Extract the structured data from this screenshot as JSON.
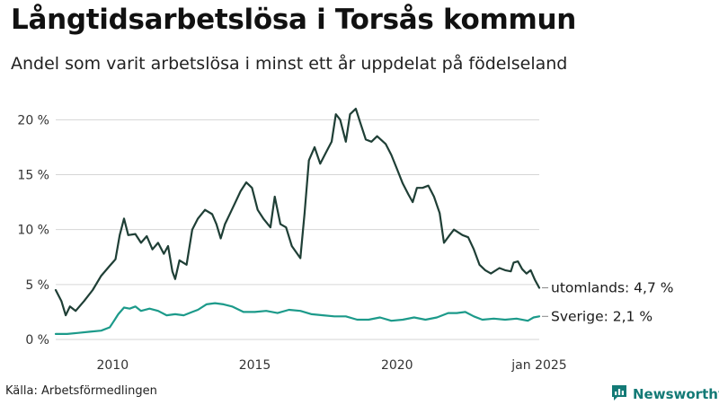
{
  "header": {
    "title": "Långtidsarbetslösa i Torsås kommun",
    "subtitle": "Andel som varit arbetslösa i minst ett år uppdelat på födelseland"
  },
  "footer": {
    "source": "Källa: Arbetsförmedlingen",
    "brand": "Newsworthy"
  },
  "colors": {
    "utomlands": "#1f3f36",
    "sverige": "#1c9a8a",
    "grid": "#d6d6d6",
    "brand": "#137a76"
  },
  "icons": {
    "brand_logo": "bar-chart-speech-bubble-icon"
  },
  "chart_data": {
    "type": "line",
    "title": "Långtidsarbetslösa i Torsås kommun",
    "subtitle": "Andel som varit arbetslösa i minst ett år uppdelat på födelseland",
    "xlabel": "",
    "ylabel": "",
    "x_range": [
      2008.0,
      2025.0
    ],
    "ylim": [
      0,
      21.5
    ],
    "y_ticks": [
      0,
      5,
      10,
      15,
      20
    ],
    "y_tick_labels": [
      "0 %",
      "5 %",
      "10 %",
      "15 %",
      "20 %"
    ],
    "x_ticks": [
      2010,
      2015,
      2020,
      2025
    ],
    "x_tick_labels": [
      "2010",
      "2015",
      "2020",
      "jan 2025"
    ],
    "grid": "horizontal",
    "legend": "end-of-line labels",
    "series": [
      {
        "name": "utomlands",
        "end_label": "utomlands: 4,7 %",
        "points": [
          [
            2008.0,
            4.5
          ],
          [
            2008.2,
            3.5
          ],
          [
            2008.35,
            2.2
          ],
          [
            2008.5,
            3.0
          ],
          [
            2008.7,
            2.6
          ],
          [
            2009.0,
            3.5
          ],
          [
            2009.3,
            4.5
          ],
          [
            2009.6,
            5.8
          ],
          [
            2009.9,
            6.7
          ],
          [
            2010.1,
            7.3
          ],
          [
            2010.25,
            9.5
          ],
          [
            2010.4,
            11.0
          ],
          [
            2010.55,
            9.5
          ],
          [
            2010.8,
            9.6
          ],
          [
            2011.0,
            8.8
          ],
          [
            2011.2,
            9.4
          ],
          [
            2011.4,
            8.2
          ],
          [
            2011.6,
            8.8
          ],
          [
            2011.8,
            7.8
          ],
          [
            2011.95,
            8.5
          ],
          [
            2012.1,
            6.2
          ],
          [
            2012.2,
            5.5
          ],
          [
            2012.35,
            7.2
          ],
          [
            2012.6,
            6.8
          ],
          [
            2012.8,
            10.0
          ],
          [
            2013.0,
            11.0
          ],
          [
            2013.25,
            11.8
          ],
          [
            2013.5,
            11.4
          ],
          [
            2013.65,
            10.5
          ],
          [
            2013.8,
            9.2
          ],
          [
            2013.95,
            10.5
          ],
          [
            2014.1,
            11.3
          ],
          [
            2014.3,
            12.4
          ],
          [
            2014.5,
            13.5
          ],
          [
            2014.7,
            14.3
          ],
          [
            2014.9,
            13.8
          ],
          [
            2015.1,
            11.8
          ],
          [
            2015.3,
            11.0
          ],
          [
            2015.55,
            10.2
          ],
          [
            2015.7,
            13.0
          ],
          [
            2015.9,
            10.5
          ],
          [
            2016.1,
            10.2
          ],
          [
            2016.3,
            8.5
          ],
          [
            2016.6,
            7.4
          ],
          [
            2016.75,
            11.5
          ],
          [
            2016.9,
            16.3
          ],
          [
            2017.1,
            17.5
          ],
          [
            2017.3,
            16.0
          ],
          [
            2017.5,
            17.0
          ],
          [
            2017.7,
            18.0
          ],
          [
            2017.85,
            20.5
          ],
          [
            2018.0,
            20.0
          ],
          [
            2018.2,
            18.0
          ],
          [
            2018.35,
            20.5
          ],
          [
            2018.55,
            21.0
          ],
          [
            2018.7,
            19.8
          ],
          [
            2018.9,
            18.2
          ],
          [
            2019.1,
            18.0
          ],
          [
            2019.3,
            18.5
          ],
          [
            2019.6,
            17.8
          ],
          [
            2019.8,
            16.8
          ],
          [
            2020.0,
            15.5
          ],
          [
            2020.2,
            14.2
          ],
          [
            2020.4,
            13.2
          ],
          [
            2020.55,
            12.5
          ],
          [
            2020.7,
            13.8
          ],
          [
            2020.9,
            13.8
          ],
          [
            2021.1,
            14.0
          ],
          [
            2021.3,
            13.0
          ],
          [
            2021.5,
            11.5
          ],
          [
            2021.65,
            8.8
          ],
          [
            2021.85,
            9.5
          ],
          [
            2022.0,
            10.0
          ],
          [
            2022.3,
            9.5
          ],
          [
            2022.5,
            9.3
          ],
          [
            2022.7,
            8.2
          ],
          [
            2022.9,
            6.8
          ],
          [
            2023.1,
            6.3
          ],
          [
            2023.3,
            6.0
          ],
          [
            2023.6,
            6.5
          ],
          [
            2023.8,
            6.3
          ],
          [
            2024.0,
            6.2
          ],
          [
            2024.1,
            7.0
          ],
          [
            2024.25,
            7.1
          ],
          [
            2024.4,
            6.4
          ],
          [
            2024.55,
            6.0
          ],
          [
            2024.7,
            6.3
          ],
          [
            2024.85,
            5.4
          ],
          [
            2025.0,
            4.7
          ]
        ]
      },
      {
        "name": "Sverige",
        "end_label": "Sverige: 2,1 %",
        "points": [
          [
            2008.0,
            0.5
          ],
          [
            2008.4,
            0.5
          ],
          [
            2008.8,
            0.6
          ],
          [
            2009.2,
            0.7
          ],
          [
            2009.6,
            0.8
          ],
          [
            2009.9,
            1.1
          ],
          [
            2010.0,
            1.5
          ],
          [
            2010.2,
            2.3
          ],
          [
            2010.4,
            2.9
          ],
          [
            2010.6,
            2.8
          ],
          [
            2010.8,
            3.0
          ],
          [
            2011.0,
            2.6
          ],
          [
            2011.3,
            2.8
          ],
          [
            2011.6,
            2.6
          ],
          [
            2011.9,
            2.2
          ],
          [
            2012.2,
            2.3
          ],
          [
            2012.5,
            2.2
          ],
          [
            2012.8,
            2.5
          ],
          [
            2013.0,
            2.7
          ],
          [
            2013.3,
            3.2
          ],
          [
            2013.6,
            3.3
          ],
          [
            2013.9,
            3.2
          ],
          [
            2014.2,
            3.0
          ],
          [
            2014.6,
            2.5
          ],
          [
            2015.0,
            2.5
          ],
          [
            2015.4,
            2.6
          ],
          [
            2015.8,
            2.4
          ],
          [
            2016.2,
            2.7
          ],
          [
            2016.6,
            2.6
          ],
          [
            2017.0,
            2.3
          ],
          [
            2017.4,
            2.2
          ],
          [
            2017.8,
            2.1
          ],
          [
            2018.2,
            2.1
          ],
          [
            2018.6,
            1.8
          ],
          [
            2019.0,
            1.8
          ],
          [
            2019.4,
            2.0
          ],
          [
            2019.8,
            1.7
          ],
          [
            2020.2,
            1.8
          ],
          [
            2020.6,
            2.0
          ],
          [
            2021.0,
            1.8
          ],
          [
            2021.4,
            2.0
          ],
          [
            2021.8,
            2.4
          ],
          [
            2022.1,
            2.4
          ],
          [
            2022.4,
            2.5
          ],
          [
            2022.7,
            2.1
          ],
          [
            2023.0,
            1.8
          ],
          [
            2023.4,
            1.9
          ],
          [
            2023.8,
            1.8
          ],
          [
            2024.2,
            1.9
          ],
          [
            2024.6,
            1.7
          ],
          [
            2024.8,
            2.0
          ],
          [
            2025.0,
            2.1
          ]
        ]
      }
    ]
  }
}
